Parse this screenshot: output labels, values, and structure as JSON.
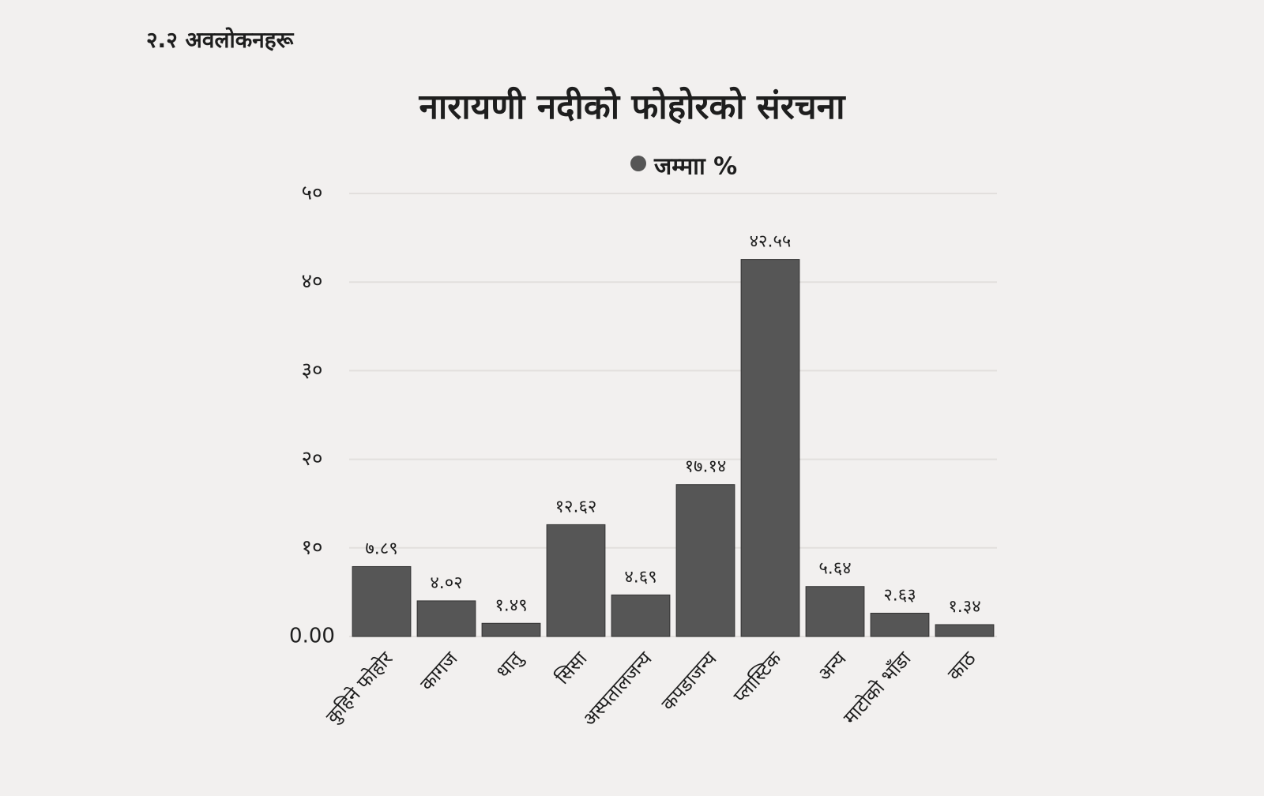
{
  "section_heading": "२.२ अवलोकनहरू",
  "chart_data": {
    "type": "bar",
    "title": "नारायणी नदीको फोहोरको संरचना",
    "categories": [
      "कुहिने फोहोर",
      "कागज",
      "धातु",
      "सिसा",
      "अस्पतालजन्य",
      "कपडाजन्य",
      "प्लास्टिक",
      "अन्य",
      "माटोको भाँडा",
      "काठ"
    ],
    "series": [
      {
        "name": "जम्माा %",
        "color": "#565656",
        "values": [
          7.89,
          4.02,
          1.49,
          12.62,
          4.69,
          17.14,
          42.55,
          5.64,
          2.63,
          1.34
        ],
        "value_labels": [
          "७.८९",
          "४.०२",
          "१.४९",
          "१२.६२",
          "४.६९",
          "१७.१४",
          "४२.५५",
          "५.६४",
          "२.६३",
          "१.३४"
        ]
      }
    ],
    "ylim": [
      0,
      50
    ],
    "yticks": [
      {
        "value": 0,
        "label": "0.00"
      },
      {
        "value": 10,
        "label": "१०"
      },
      {
        "value": 20,
        "label": "२०"
      },
      {
        "value": 30,
        "label": "३०"
      },
      {
        "value": 40,
        "label": "४०"
      },
      {
        "value": 50,
        "label": "५०"
      }
    ],
    "grid": true
  }
}
